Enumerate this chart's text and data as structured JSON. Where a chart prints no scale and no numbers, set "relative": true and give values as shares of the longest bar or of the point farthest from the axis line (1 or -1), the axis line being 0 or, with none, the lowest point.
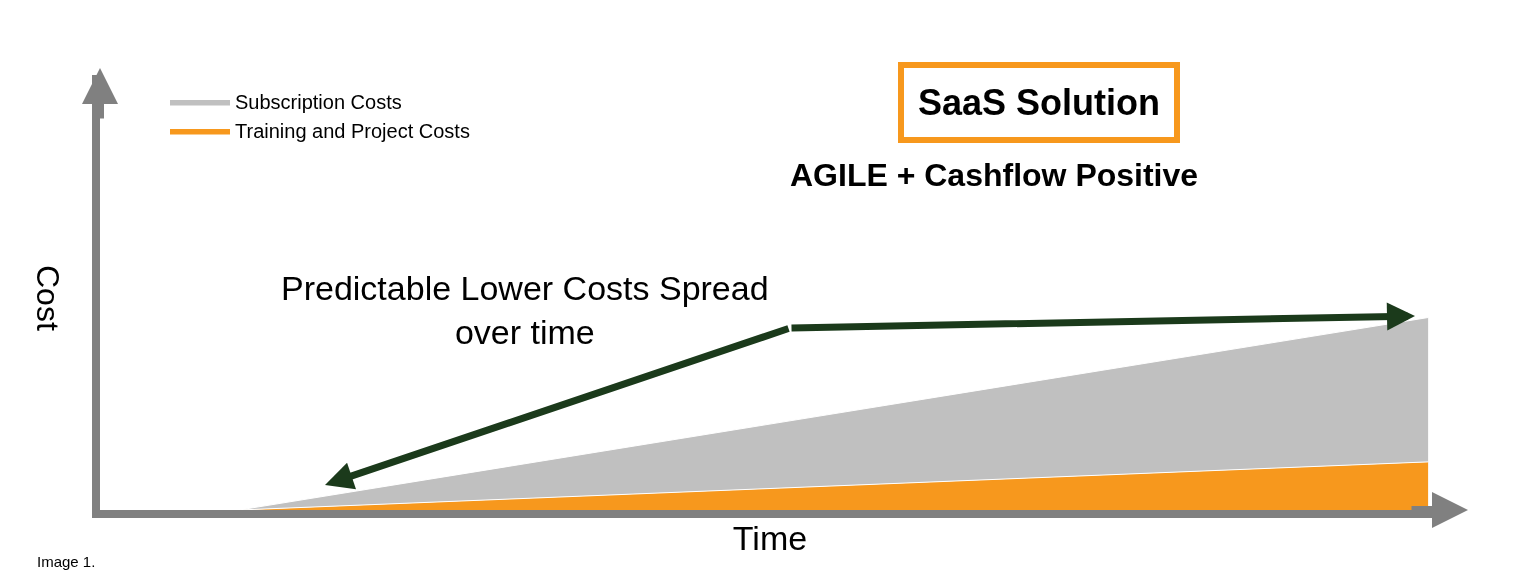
{
  "chart_data": {
    "type": "area",
    "title": "SaaS Solution",
    "subtitle": "AGILE + Cashflow Positive",
    "xlabel": "Time",
    "ylabel": "Cost",
    "categories": [
      null,
      null
    ],
    "relative": true,
    "stacked": true,
    "legend": "top left",
    "tick_labels": false,
    "series": [
      {
        "name": "Training and Project Costs",
        "color": "#f7981d",
        "values": [
          0,
          0.25
        ]
      },
      {
        "name": "Subscription Costs",
        "color": "#c0c0c0",
        "values": [
          0,
          0.75
        ]
      }
    ],
    "annotations": [
      {
        "text": "Predictable Lower Costs Spread\nover time"
      },
      {
        "text": "Image 1."
      }
    ]
  }
}
